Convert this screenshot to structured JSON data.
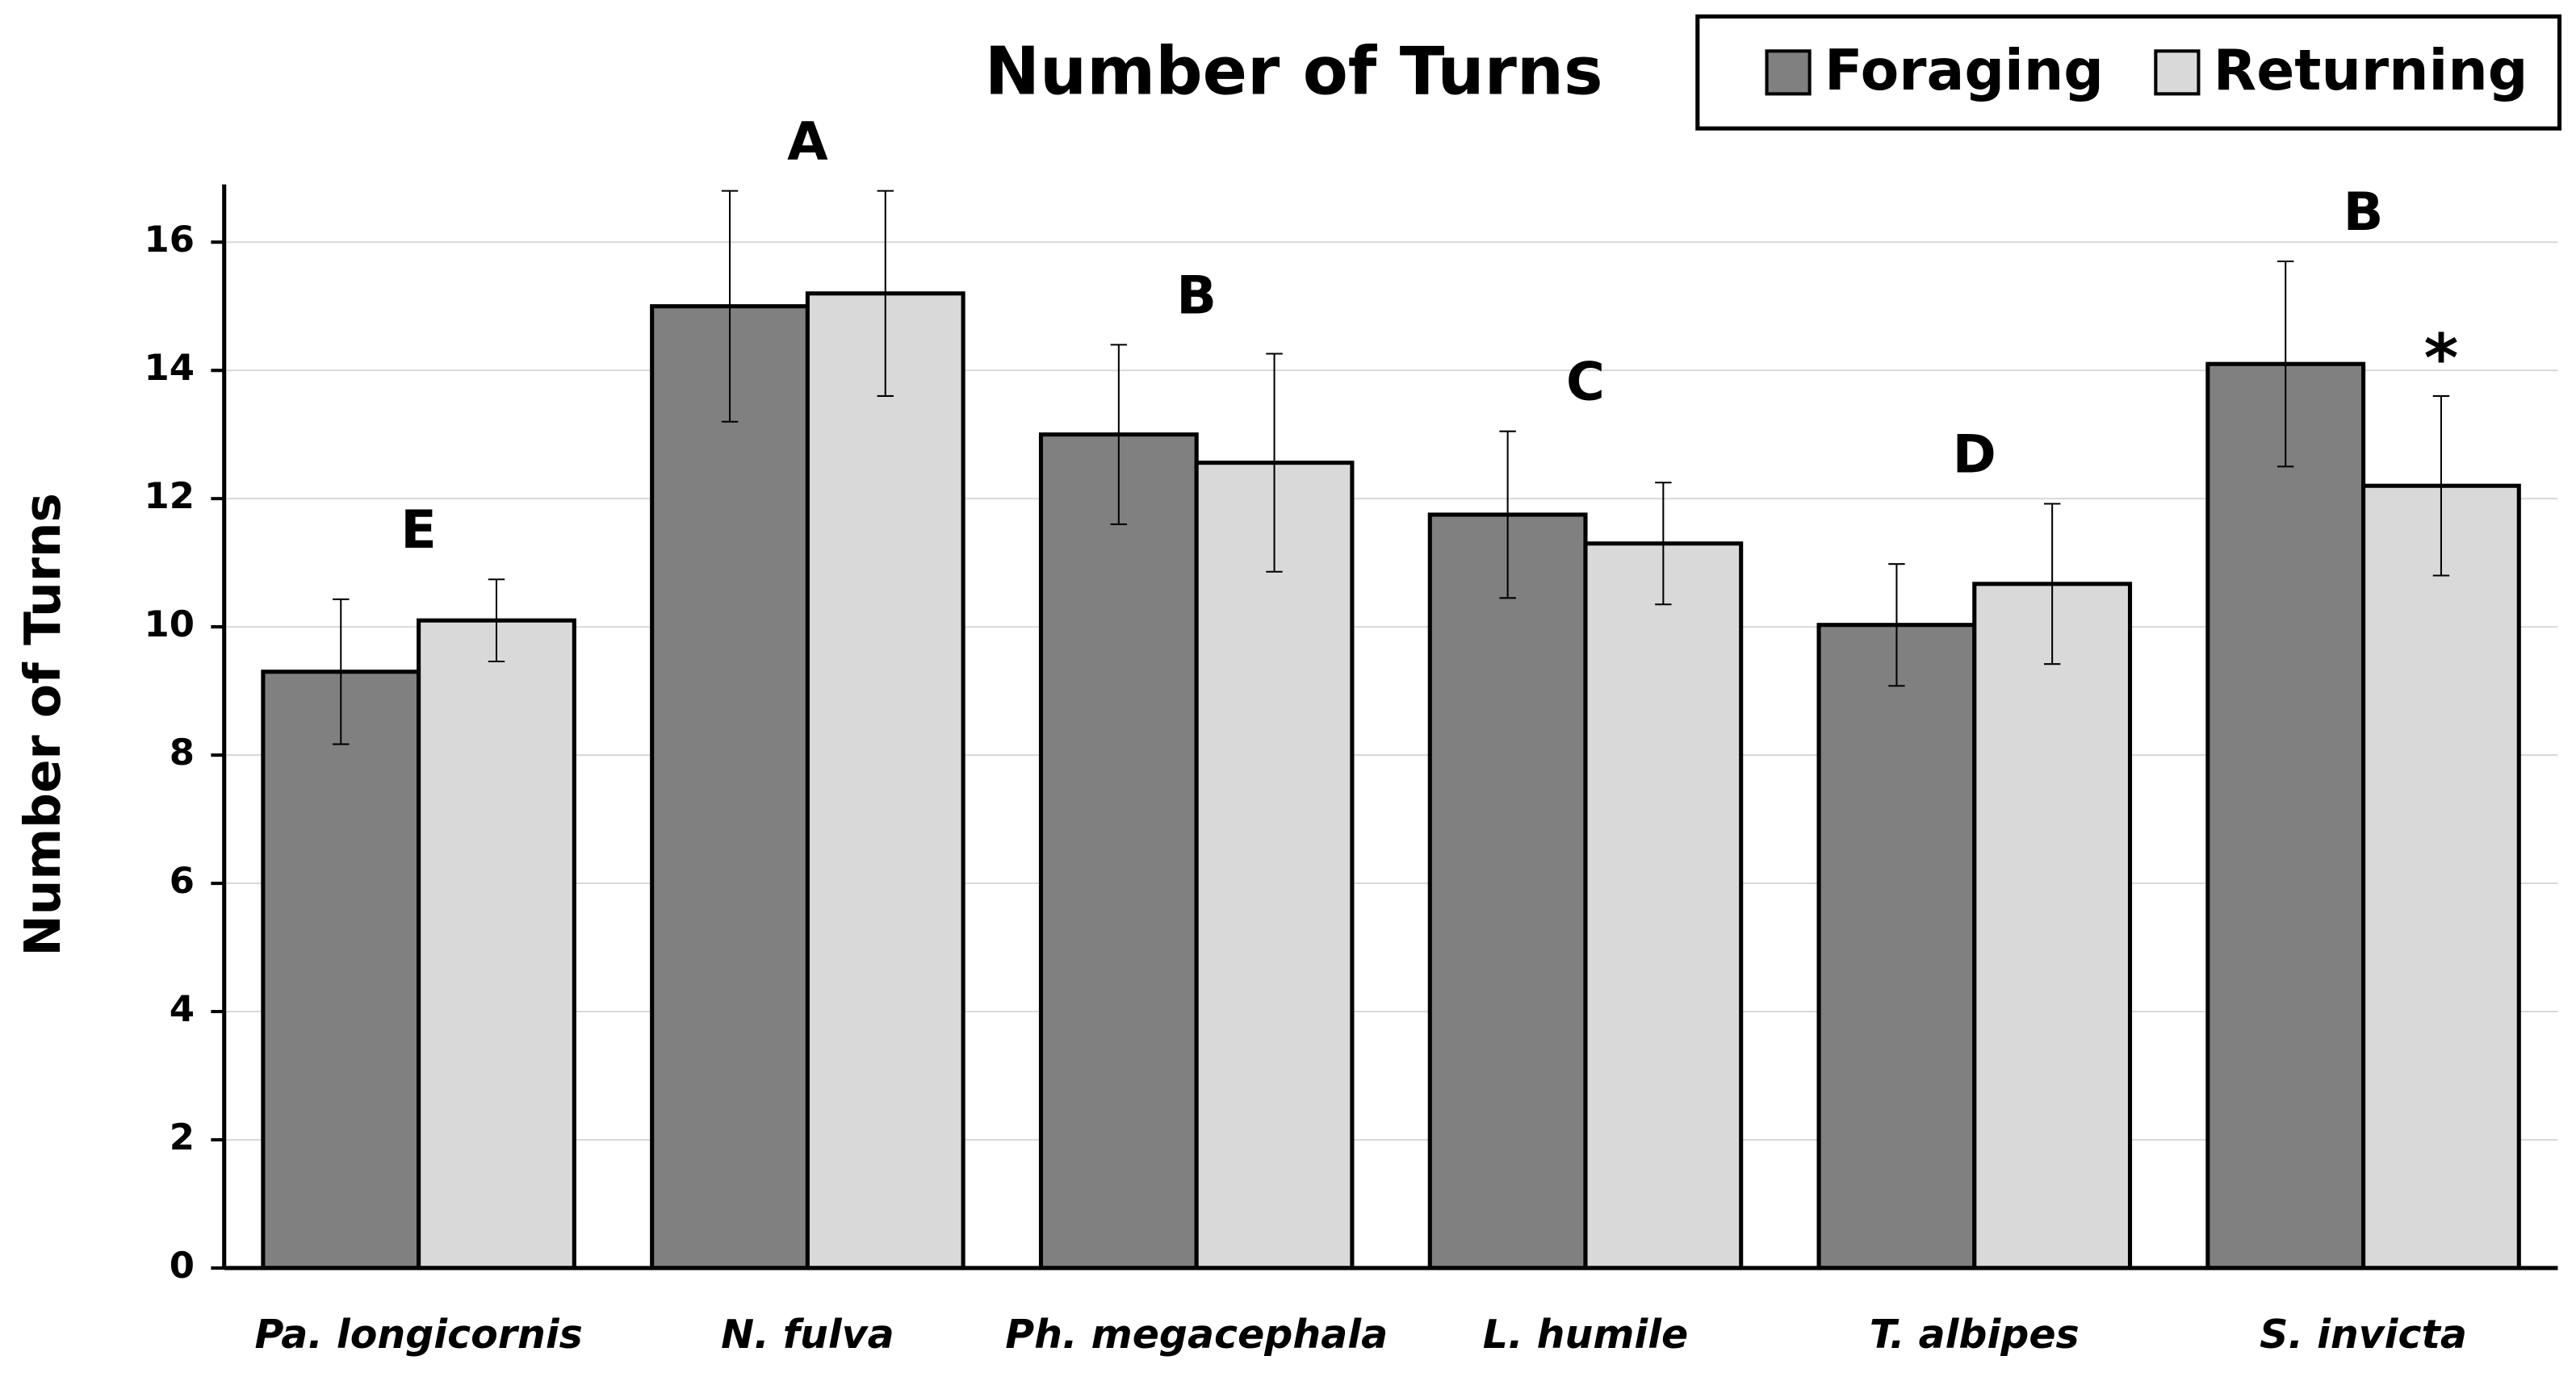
{
  "chart_data": {
    "type": "bar",
    "title": "Number of Turns",
    "y_label": "Number of Turns",
    "categories": [
      "Pa. longicornis",
      "N. fulva",
      "Ph. megacephala",
      "L. humile",
      "T. albipes",
      "S. invicta"
    ],
    "series": [
      {
        "name": "Foraging",
        "color": "#808080",
        "values": [
          9.3,
          15.0,
          13.0,
          11.75,
          10.03,
          14.1
        ],
        "errors": [
          1.13,
          1.8,
          1.4,
          1.3,
          0.95,
          1.6
        ]
      },
      {
        "name": "Returning",
        "color": "#d9d9d9",
        "values": [
          10.1,
          15.2,
          12.56,
          11.3,
          10.67,
          12.2
        ],
        "errors": [
          0.64,
          1.6,
          1.7,
          0.95,
          1.25,
          1.4
        ]
      }
    ],
    "group_letters": [
      "E",
      "A",
      "B",
      "C",
      "D",
      "B"
    ],
    "significance_marks": [
      null,
      null,
      null,
      null,
      null,
      "*"
    ],
    "ylim": [
      0,
      16.9
    ],
    "yticks": [
      0,
      2,
      4,
      6,
      8,
      10,
      12,
      14,
      16
    ],
    "grid": true,
    "legend": "top-right"
  }
}
